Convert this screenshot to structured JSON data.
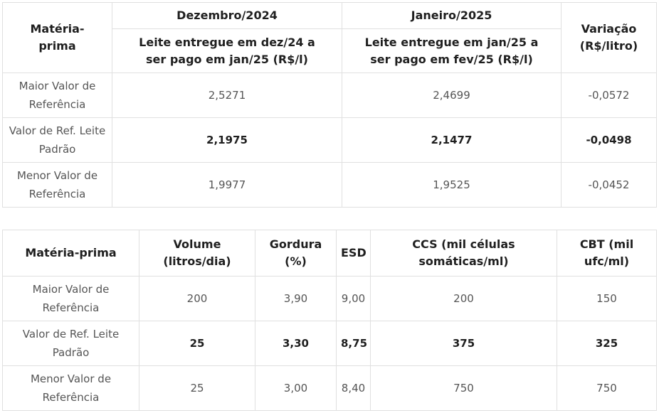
{
  "table1": {
    "header": {
      "row_label": "Matéria-prima",
      "groups": [
        "Dezembro/2024",
        "Janeiro/2025"
      ],
      "subheaders": [
        "Leite entregue em dez/24 a ser pago em jan/25 (R$/l)",
        "Leite entregue em jan/25 a ser pago em fev/25 (R$/l)"
      ],
      "variation": "Variação (R$/litro)"
    },
    "rows": [
      [
        "Maior Valor de Referência",
        "2,5271",
        "2,4699",
        "-0,0572"
      ],
      [
        "Valor de Ref. Leite Padrão",
        "2,1975",
        "2,1477",
        "-0,0498"
      ],
      [
        "Menor Valor de Referência",
        "1,9977",
        "1,9525",
        "-0,0452"
      ]
    ]
  },
  "table2": {
    "header": [
      "Matéria-prima",
      "Volume (litros/dia)",
      "Gordura (%)",
      "ESD",
      "CCS (mil células somáticas/ml)",
      "CBT (mil ufc/ml)"
    ],
    "rows": [
      [
        "Maior Valor de Referência",
        "200",
        "3,90",
        "9,00",
        "200",
        "150"
      ],
      [
        "Valor de Ref. Leite Padrão",
        "25",
        "3,30",
        "8,75",
        "375",
        "325"
      ],
      [
        "Menor Valor de Referência",
        "25",
        "3,00",
        "8,40",
        "750",
        "750"
      ]
    ]
  }
}
